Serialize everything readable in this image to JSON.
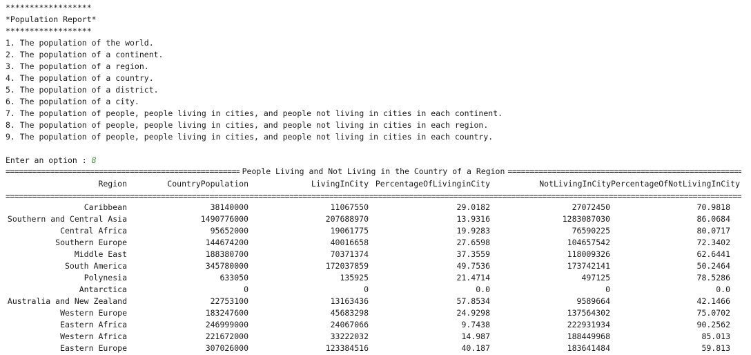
{
  "banner": {
    "stars_top": "******************",
    "title": "*Population Report*",
    "stars_bottom": "******************"
  },
  "menu": {
    "items": [
      "1. The population of the world.",
      "2. The population of a continent.",
      "3. The population of a region.",
      "4. The population of a country.",
      "5. The population of a district.",
      "6. The population of a city.",
      "7. The population of people, people living in cities, and people not living in cities in each continent.",
      "8. The population of people, people living in cities, and people not living in cities in each region.",
      "9. The population of people, people living in cities, and people not living in cities in each country."
    ]
  },
  "prompt": {
    "label": "Enter an option : ",
    "value": "8"
  },
  "report": {
    "title": "People Living and Not Living in the Country of a Region",
    "separator_char": "=",
    "headers": {
      "region": "Region",
      "country_population": "CountryPopulation",
      "living_in_city": "LivingInCity",
      "pct_living_in_city": "PercentageOfLivinginCity",
      "not_living_in_city": "NotLivingInCityPercentageOfNotLivingInCity"
    },
    "rows": [
      [
        "Caribbean",
        "38140000",
        "11067550",
        "29.0182",
        "27072450",
        "70.9818"
      ],
      [
        "Southern and Central Asia",
        "1490776000",
        "207688970",
        "13.9316",
        "1283087030",
        "86.0684"
      ],
      [
        "Central Africa",
        "95652000",
        "19061775",
        "19.9283",
        "76590225",
        "80.0717"
      ],
      [
        "Southern Europe",
        "144674200",
        "40016658",
        "27.6598",
        "104657542",
        "72.3402"
      ],
      [
        "Middle East",
        "188380700",
        "70371374",
        "37.3559",
        "118009326",
        "62.6441"
      ],
      [
        "South America",
        "345780000",
        "172037859",
        "49.7536",
        "173742141",
        "50.2464"
      ],
      [
        "Polynesia",
        "633050",
        "135925",
        "21.4714",
        "497125",
        "78.5286"
      ],
      [
        "Antarctica",
        "0",
        "0",
        "0.0",
        "0",
        "0.0"
      ],
      [
        "Australia and New Zealand",
        "22753100",
        "13163436",
        "57.8534",
        "9589664",
        "42.1466"
      ],
      [
        "Western Europe",
        "183247600",
        "45683298",
        "24.9298",
        "137564302",
        "75.0702"
      ],
      [
        "Eastern Africa",
        "246999000",
        "24067066",
        "9.7438",
        "222931934",
        "90.2562"
      ],
      [
        "Western Africa",
        "221672000",
        "33222032",
        "14.987",
        "188449968",
        "85.013"
      ],
      [
        "Eastern Europe",
        "307026000",
        "123384516",
        "40.187",
        "183641484",
        "59.813"
      ]
    ]
  }
}
